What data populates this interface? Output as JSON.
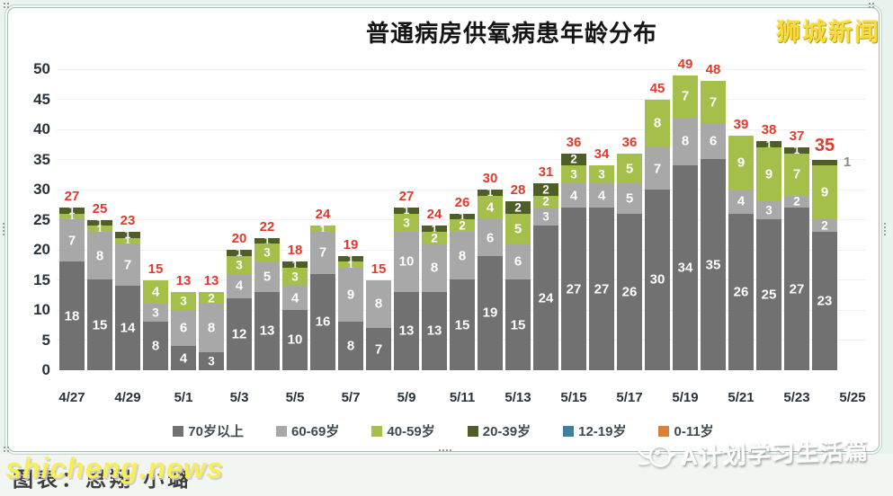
{
  "window": {
    "background": "#e9f4ee",
    "card_background": "#ffffff"
  },
  "watermarks": {
    "top_right": "狮城新闻",
    "bottom_left_yellow": "shicheng.news",
    "bottom_left_credit": "图表：思翔 小璐",
    "bottom_right": "A计划学习生活篇"
  },
  "chart_data": {
    "type": "bar",
    "stacked": true,
    "title": "普通病房供氧病患年龄分布",
    "xlabel": "",
    "ylabel": "",
    "ylim": [
      0,
      50
    ],
    "ytick_step": 5,
    "grid": true,
    "legend_position": "bottom",
    "x_tick_labels": [
      "4/27",
      "4/29",
      "5/1",
      "5/3",
      "5/5",
      "5/7",
      "5/9",
      "5/11",
      "5/13",
      "5/15",
      "5/17",
      "5/19",
      "5/21",
      "5/23",
      "5/25"
    ],
    "categories": [
      "4/27",
      "4/28",
      "4/29",
      "4/30",
      "5/1",
      "5/2",
      "5/3",
      "5/4",
      "5/5",
      "5/6",
      "5/7",
      "5/8",
      "5/9",
      "5/10",
      "5/11",
      "5/12",
      "5/13",
      "5/14",
      "5/15",
      "5/16",
      "5/17",
      "5/18",
      "5/19",
      "5/20",
      "5/21",
      "5/22",
      "5/23",
      "5/24"
    ],
    "series": [
      {
        "name": "70岁以上",
        "color": "#717171",
        "values": [
          18,
          15,
          14,
          8,
          4,
          3,
          12,
          13,
          10,
          16,
          8,
          7,
          13,
          13,
          15,
          19,
          15,
          24,
          27,
          27,
          26,
          30,
          34,
          35,
          26,
          25,
          27,
          23
        ]
      },
      {
        "name": "60-69岁",
        "color": "#a8a8a8",
        "values": [
          7,
          8,
          7,
          3,
          6,
          8,
          4,
          5,
          4,
          7,
          9,
          8,
          10,
          8,
          8,
          6,
          6,
          3,
          4,
          4,
          5,
          7,
          8,
          6,
          4,
          3,
          2,
          2
        ]
      },
      {
        "name": "40-59岁",
        "color": "#a5bf4b",
        "values": [
          1,
          1,
          1,
          4,
          3,
          2,
          3,
          3,
          3,
          1,
          1,
          0,
          3,
          2,
          2,
          4,
          5,
          2,
          3,
          3,
          5,
          8,
          7,
          7,
          9,
          9,
          7,
          9
        ]
      },
      {
        "name": "20-39岁",
        "color": "#4f5d26",
        "values": [
          1,
          1,
          1,
          0,
          0,
          0,
          1,
          1,
          1,
          0,
          1,
          0,
          1,
          1,
          1,
          1,
          2,
          2,
          2,
          0,
          0,
          0,
          0,
          0,
          0,
          1,
          1,
          1
        ]
      },
      {
        "name": "12-19岁",
        "color": "#3d7f9e",
        "values": [
          0,
          0,
          0,
          0,
          0,
          0,
          0,
          0,
          0,
          0,
          0,
          0,
          0,
          0,
          0,
          0,
          0,
          0,
          0,
          0,
          0,
          0,
          0,
          0,
          0,
          0,
          0,
          0
        ]
      },
      {
        "name": "0-11岁",
        "color": "#dd7e3b",
        "values": [
          0,
          0,
          0,
          0,
          0,
          0,
          0,
          0,
          0,
          0,
          0,
          0,
          0,
          0,
          0,
          0,
          0,
          0,
          0,
          0,
          0,
          0,
          0,
          0,
          0,
          0,
          0,
          0
        ]
      }
    ],
    "totals": [
      27,
      25,
      23,
      15,
      13,
      13,
      20,
      22,
      18,
      24,
      19,
      15,
      27,
      24,
      26,
      30,
      28,
      31,
      36,
      34,
      36,
      45,
      49,
      48,
      39,
      38,
      37,
      35
    ],
    "total_label_color": "#e03a2e",
    "outside_label": {
      "bar_index": 27,
      "series": "20-39岁",
      "text": "1"
    }
  }
}
